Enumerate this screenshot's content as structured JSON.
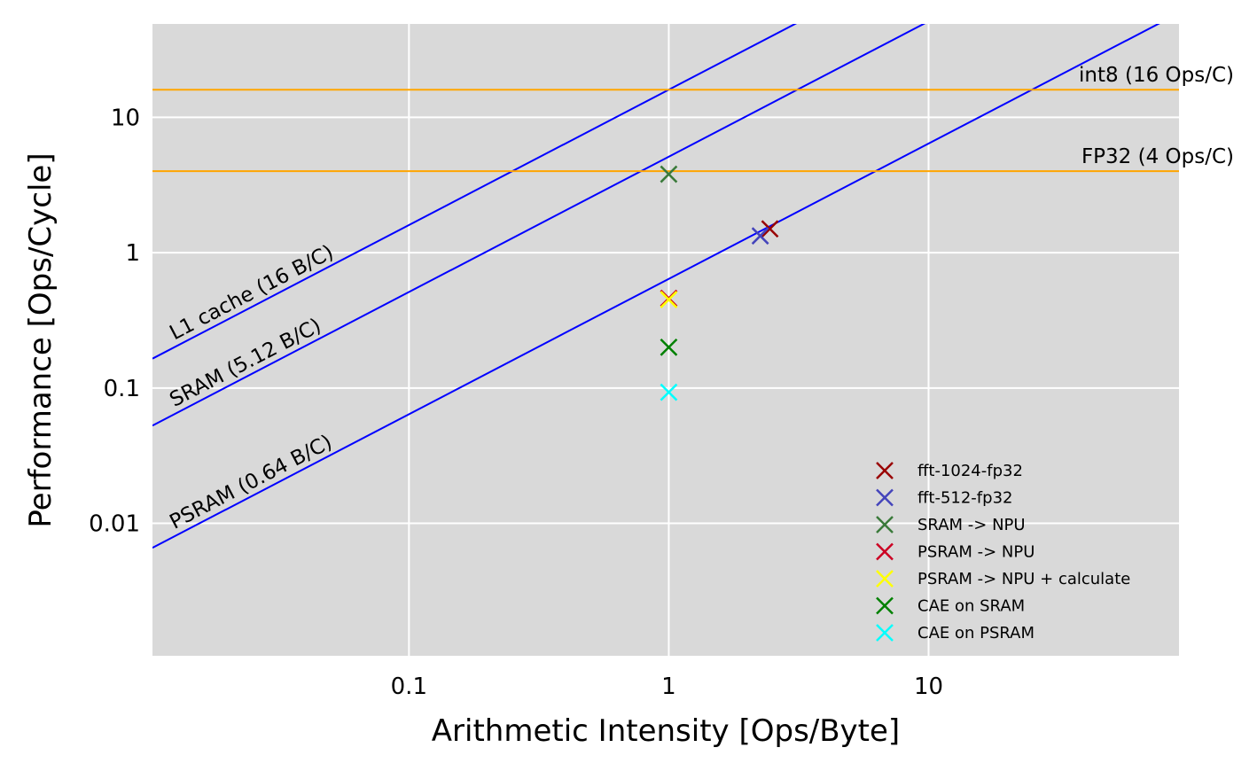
{
  "chart_data": {
    "type": "scatter",
    "title": "",
    "xlabel": "Arithmetic Intensity [Ops/Byte]",
    "ylabel": "Performance [Ops/Cycle]",
    "xscale": "log",
    "yscale": "log",
    "xlim": [
      0.0103,
      92
    ],
    "ylim": [
      0.00105,
      49
    ],
    "grid": true,
    "background": "#d9d9d9",
    "x_ticks": [
      {
        "value": 0.1,
        "label": "0.1"
      },
      {
        "value": 1,
        "label": "1"
      },
      {
        "value": 10,
        "label": "10"
      }
    ],
    "y_ticks": [
      {
        "value": 0.01,
        "label": "0.01"
      },
      {
        "value": 0.1,
        "label": "0.1"
      },
      {
        "value": 1,
        "label": "1"
      },
      {
        "value": 10,
        "label": "10"
      }
    ],
    "memory_roofs": [
      {
        "label": "L1 cache (16 B/C)",
        "bandwidth": 16,
        "color": "#0000ff"
      },
      {
        "label": "SRAM (5.12 B/C)",
        "bandwidth": 5.12,
        "color": "#0000ff"
      },
      {
        "label": "PSRAM (0.64 B/C)",
        "bandwidth": 0.64,
        "color": "#0000ff"
      }
    ],
    "compute_roofs": [
      {
        "label": "int8 (16 Ops/C)",
        "value": 16,
        "color": "#ffa500"
      },
      {
        "label": "FP32 (4 Ops/C)",
        "value": 4,
        "color": "#ffa500"
      }
    ],
    "legend_position": "lower-right",
    "series": [
      {
        "name": "fft-1024-fp32",
        "color": "#990000",
        "x": [
          2.45
        ],
        "y": [
          1.5
        ]
      },
      {
        "name": "fft-512-fp32",
        "color": "#4444bb",
        "x": [
          2.25
        ],
        "y": [
          1.33
        ]
      },
      {
        "name": "SRAM -> NPU",
        "color": "#3a7a3a",
        "x": [
          1.0
        ],
        "y": [
          3.8
        ]
      },
      {
        "name": "PSRAM -> NPU",
        "color": "#cc0022",
        "x": [
          1.0
        ],
        "y": [
          0.46
        ]
      },
      {
        "name": "PSRAM -> NPU + calculate",
        "color": "#ffff00",
        "x": [
          1.0
        ],
        "y": [
          0.45
        ]
      },
      {
        "name": "CAE on SRAM",
        "color": "#008000",
        "x": [
          1.0
        ],
        "y": [
          0.2
        ]
      },
      {
        "name": "CAE on PSRAM",
        "color": "#00ffff",
        "x": [
          1.0
        ],
        "y": [
          0.093
        ]
      }
    ]
  }
}
